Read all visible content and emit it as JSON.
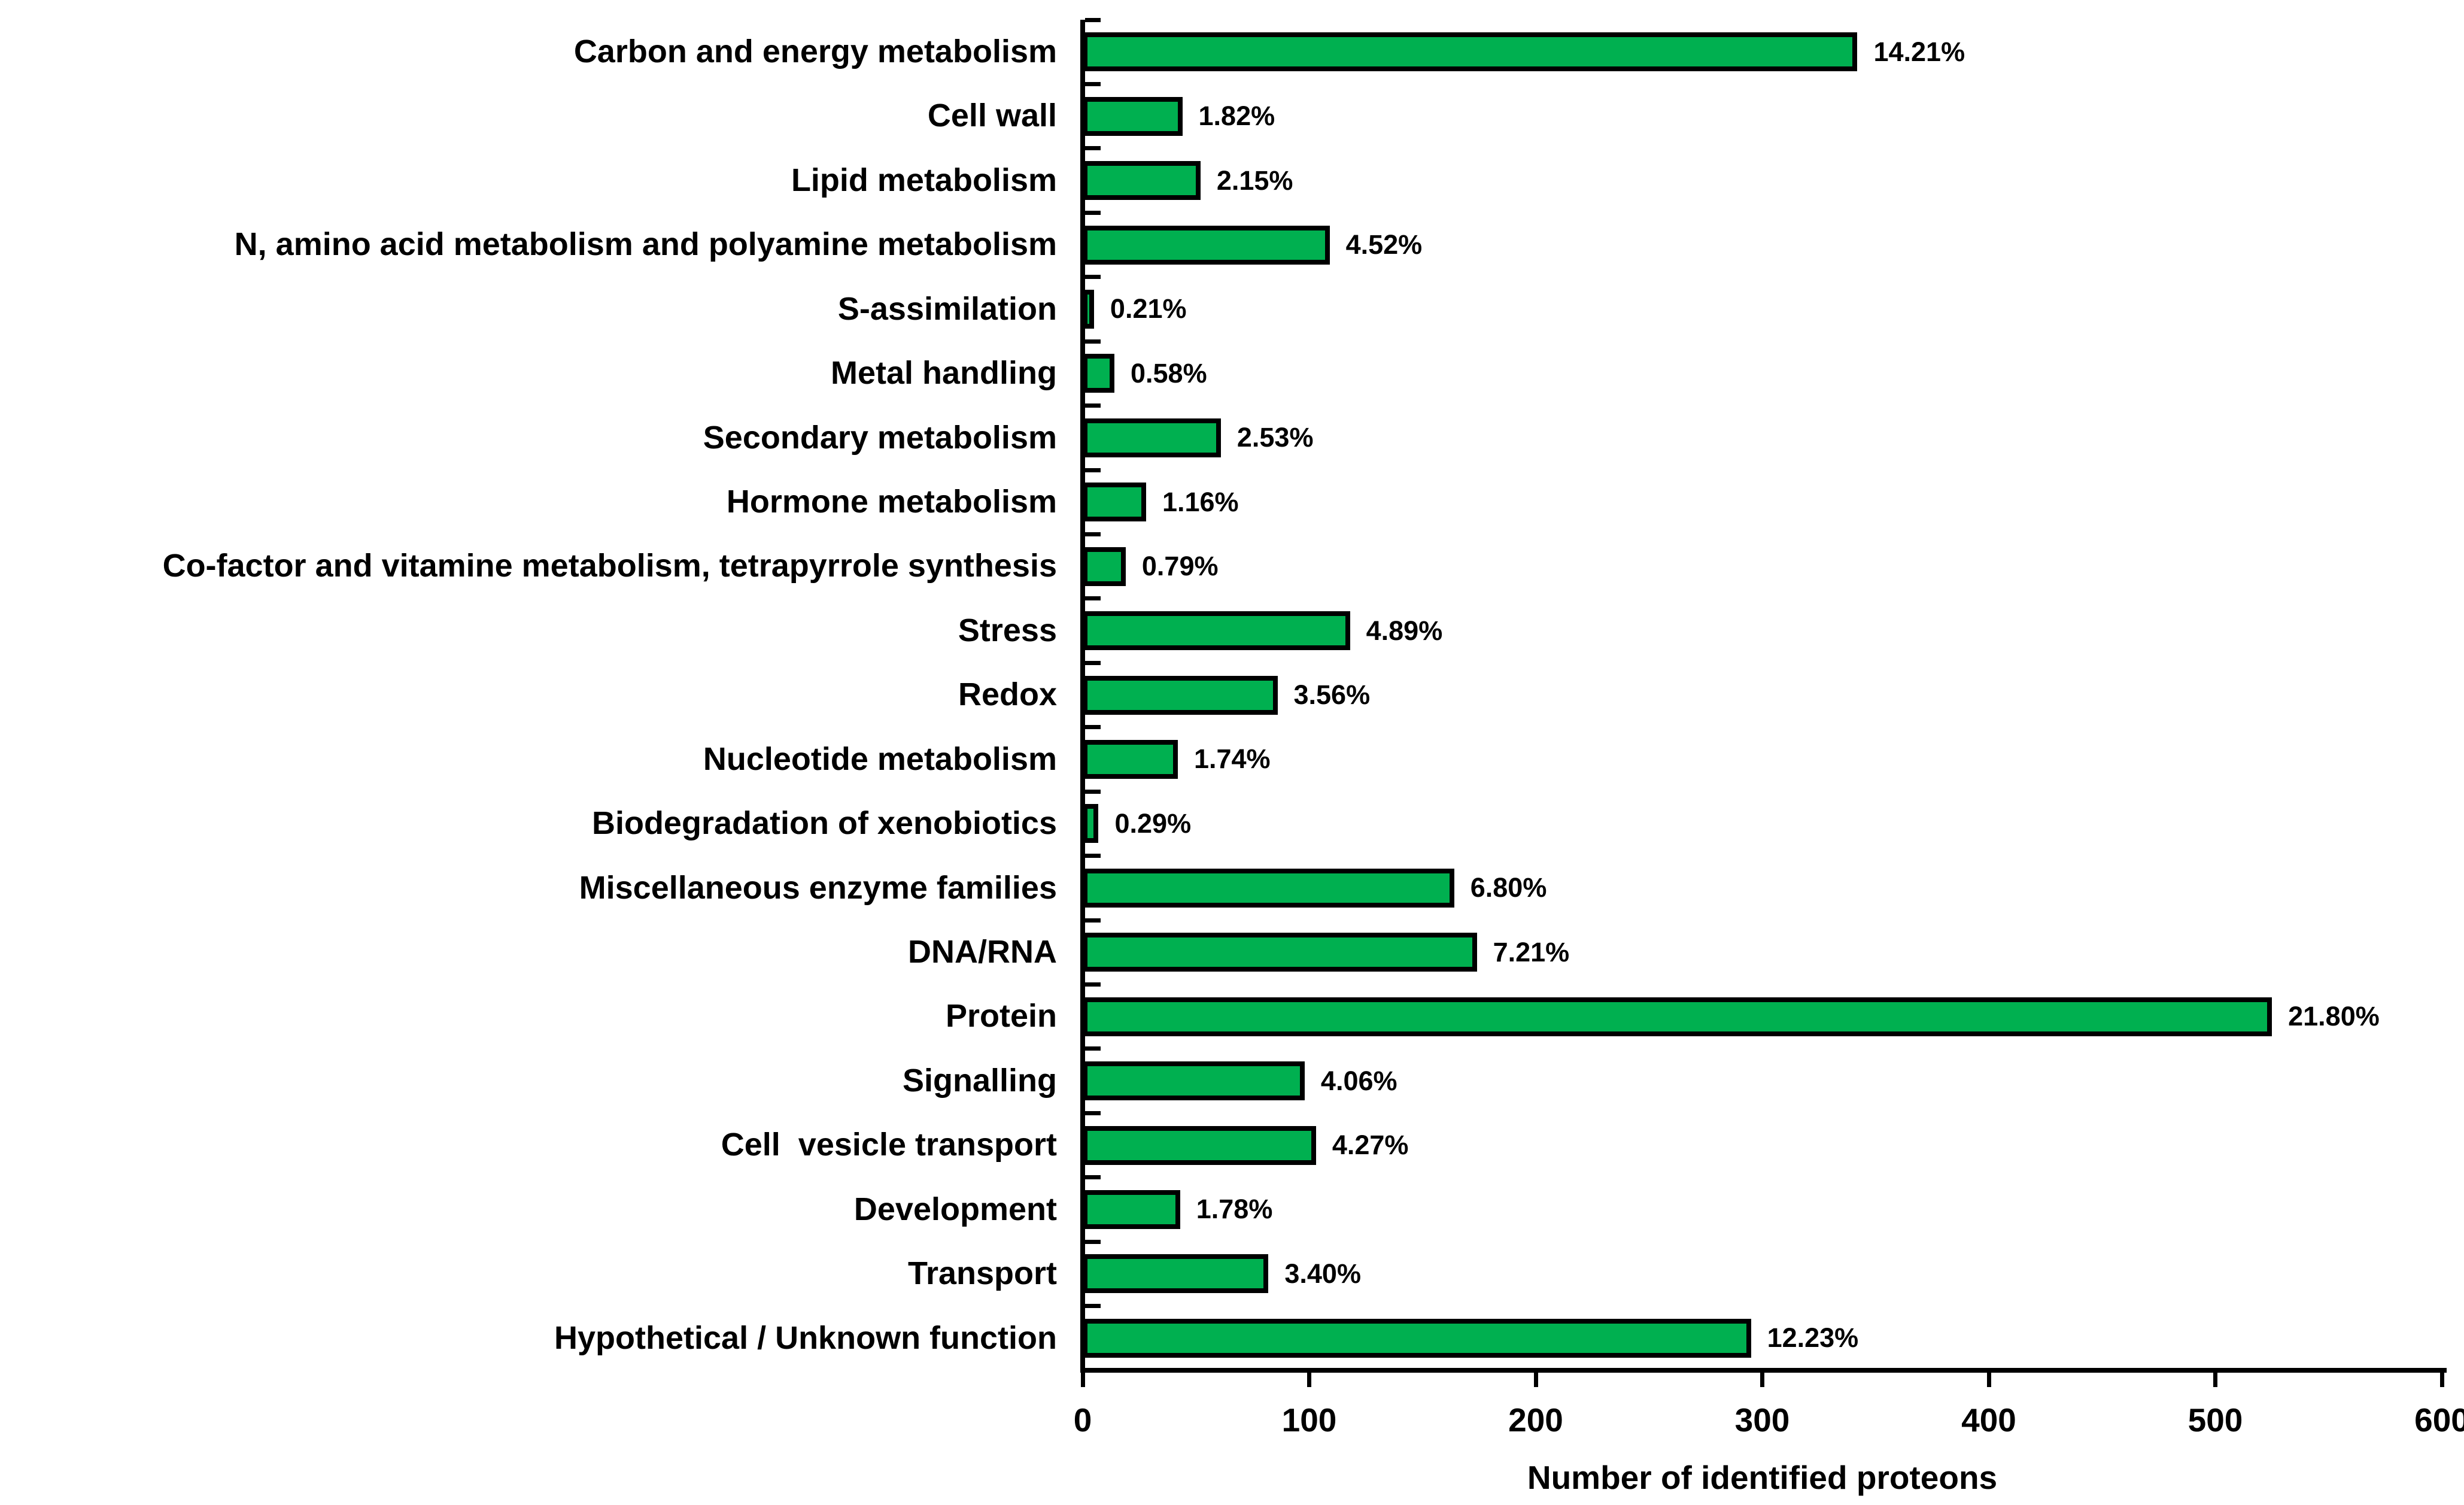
{
  "chart_data": {
    "type": "bar",
    "orientation": "horizontal",
    "title": "",
    "xlabel": "Number of identified proteons",
    "ylabel": "",
    "xlim": [
      0,
      600
    ],
    "x_ticks": [
      0,
      100,
      200,
      300,
      400,
      500,
      600
    ],
    "grid": false,
    "legend": "none",
    "bar_fill_color": "#00B050",
    "bar_border_color": "#000000",
    "text_color": "#000000",
    "background_color": "#FFFFFF",
    "categories": [
      "Carbon and energy metabolism",
      "Cell wall",
      "Lipid metabolism",
      "N, amino acid metabolism and polyamine metabolism",
      "S-assimilation",
      "Metal handling",
      "Secondary metabolism",
      "Hormone metabolism",
      "Co-factor and vitamine metabolism, tetrapyrrole synthesis",
      "Stress",
      "Redox",
      "Nucleotide metabolism",
      "Biodegradation of xenobiotics",
      "Miscellaneous enzyme families",
      "DNA/RNA",
      "Protein",
      "Signalling",
      "Cell  vesicle transport",
      "Development",
      "Transport",
      "Hypothetical / Unknown function"
    ],
    "values": [
      342,
      44,
      52,
      109,
      5,
      14,
      61,
      28,
      19,
      118,
      86,
      42,
      7,
      164,
      174,
      525,
      98,
      103,
      43,
      82,
      295
    ],
    "percent_labels": [
      "14.21%",
      "1.82%",
      "2.15%",
      "4.52%",
      "0.21%",
      "0.58%",
      "2.53%",
      "1.16%",
      "0.79%",
      "4.89%",
      "3.56%",
      "1.74%",
      "0.29%",
      "6.80%",
      "7.21%",
      "21.80%",
      "4.06%",
      "4.27%",
      "1.78%",
      "3.40%",
      "12.23%"
    ]
  }
}
